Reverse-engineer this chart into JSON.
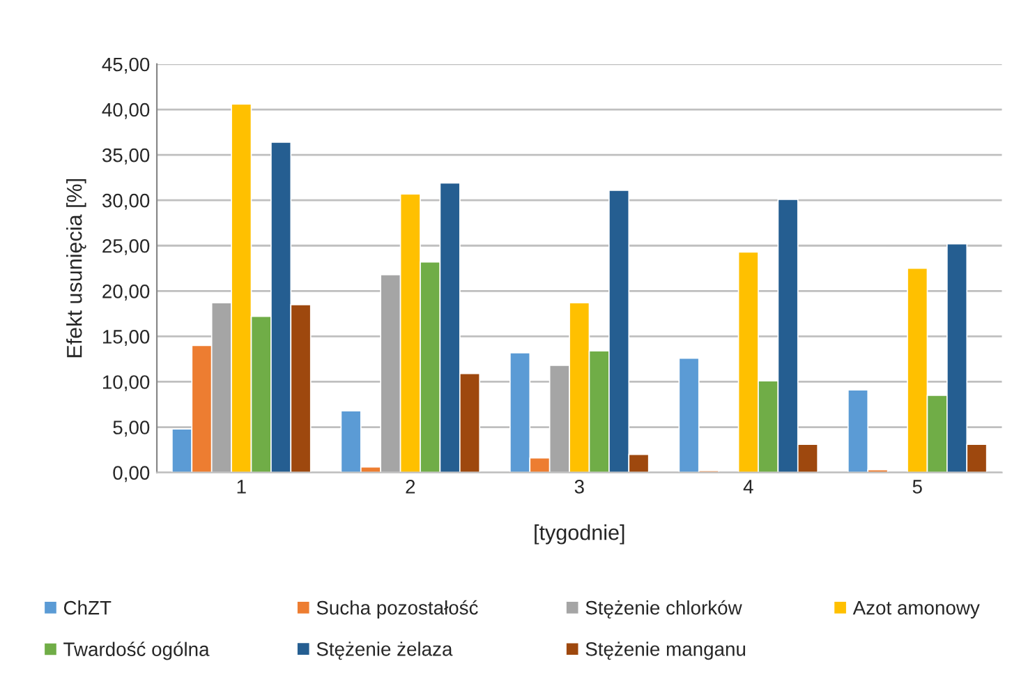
{
  "chart_data": {
    "type": "bar",
    "xlabel": "[tygodnie]",
    "ylabel": "Efekt usunięcia [%]",
    "categories": [
      "1",
      "2",
      "3",
      "4",
      "5"
    ],
    "series": [
      {
        "name": "ChZT",
        "color": "#5b9bd5",
        "values": [
          4.8,
          6.8,
          13.2,
          12.6,
          9.1
        ]
      },
      {
        "name": "Sucha pozostałość",
        "color": "#ed7d31",
        "values": [
          14.0,
          0.6,
          1.6,
          0.2,
          0.3
        ]
      },
      {
        "name": "Stężenie chlorków",
        "color": "#a5a5a5",
        "values": [
          18.7,
          21.8,
          11.8,
          null,
          null
        ]
      },
      {
        "name": "Azot amonowy",
        "color": "#ffc000",
        "values": [
          40.6,
          30.7,
          18.7,
          24.3,
          22.5
        ]
      },
      {
        "name": "Twardość ogólna",
        "color": "#70ad47",
        "values": [
          17.2,
          23.2,
          13.4,
          10.1,
          8.5
        ]
      },
      {
        "name": "Stężenie żelaza",
        "color": "#255e91",
        "values": [
          36.4,
          31.9,
          31.1,
          30.1,
          25.2
        ]
      },
      {
        "name": "Stężenie manganu",
        "color": "#9e480e",
        "values": [
          18.5,
          10.9,
          2.0,
          3.1,
          3.1
        ]
      }
    ],
    "ylim": [
      0,
      45
    ],
    "yticks": [
      {
        "value": 0,
        "label": "0,00"
      },
      {
        "value": 5,
        "label": "5,00"
      },
      {
        "value": 10,
        "label": "10,00"
      },
      {
        "value": 15,
        "label": "15,00"
      },
      {
        "value": 20,
        "label": "20,00"
      },
      {
        "value": 25,
        "label": "25,00"
      },
      {
        "value": 30,
        "label": "30,00"
      },
      {
        "value": 35,
        "label": "35,00"
      },
      {
        "value": 40,
        "label": "40,00"
      },
      {
        "value": 45,
        "label": "45,00"
      }
    ],
    "grid": "y",
    "legend": "bottom"
  }
}
